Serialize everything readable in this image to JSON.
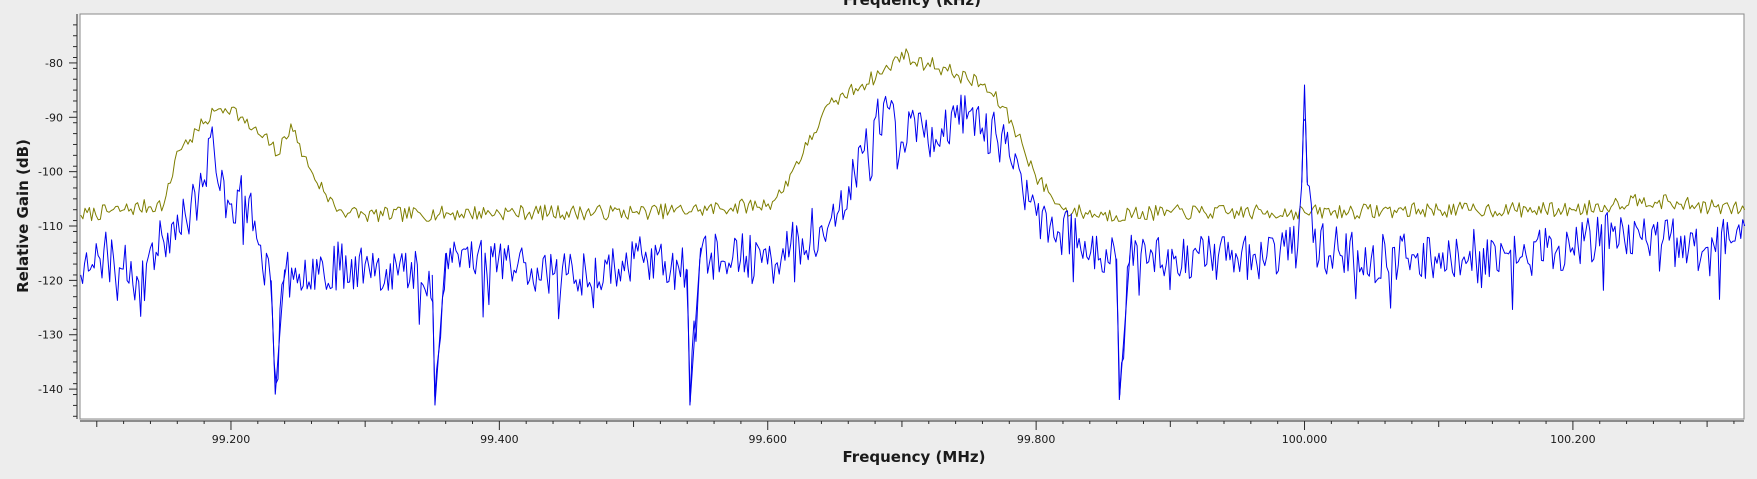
{
  "plot": {
    "top_title_partial": "Frequency (kHz)",
    "xlabel": "Frequency (MHz)",
    "ylabel": "Relative Gain (dB)"
  },
  "colors": {
    "background": "#ededed",
    "canvas": "#ffffff",
    "max_hold_trace": "#7e7e00",
    "live_trace": "#0000ee",
    "axis": "#2a2a2a"
  },
  "chart_data": {
    "type": "line",
    "title": "",
    "xlabel": "Frequency (MHz)",
    "ylabel": "Relative Gain (dB)",
    "xlim": [
      99.0875,
      100.3275
    ],
    "ylim": [
      -145.5,
      -71
    ],
    "grid": false,
    "legend": "none",
    "x_ticks": [
      99.2,
      99.4,
      99.6,
      99.8,
      100.0,
      100.2
    ],
    "x_tick_labels": [
      "99.200",
      "99.400",
      "99.600",
      "99.800",
      "100.000",
      "100.200"
    ],
    "y_ticks": [
      -80,
      -90,
      -100,
      -110,
      -120,
      -130,
      -140
    ],
    "y_tick_labels": [
      "-80",
      "-90",
      "-100",
      "-110",
      "-120",
      "-130",
      "-140"
    ],
    "series": [
      {
        "color": "#7e7e00",
        "points": [
          [
            99.088,
            -108
          ],
          [
            99.12,
            -107
          ],
          [
            99.15,
            -106
          ],
          [
            99.155,
            -102
          ],
          [
            99.16,
            -96
          ],
          [
            99.17,
            -94
          ],
          [
            99.18,
            -91
          ],
          [
            99.19,
            -88.5
          ],
          [
            99.2,
            -88
          ],
          [
            99.21,
            -91
          ],
          [
            99.22,
            -93
          ],
          [
            99.23,
            -95
          ],
          [
            99.235,
            -97
          ],
          [
            99.245,
            -91
          ],
          [
            99.25,
            -95
          ],
          [
            99.26,
            -100
          ],
          [
            99.27,
            -104
          ],
          [
            99.28,
            -107
          ],
          [
            99.3,
            -108
          ],
          [
            99.4,
            -107.5
          ],
          [
            99.5,
            -107.5
          ],
          [
            99.55,
            -107
          ],
          [
            99.6,
            -106
          ],
          [
            99.61,
            -104
          ],
          [
            99.62,
            -99
          ],
          [
            99.63,
            -95
          ],
          [
            99.64,
            -90
          ],
          [
            99.65,
            -87
          ],
          [
            99.67,
            -84
          ],
          [
            99.69,
            -81
          ],
          [
            99.7,
            -78
          ],
          [
            99.71,
            -80
          ],
          [
            99.72,
            -80
          ],
          [
            99.74,
            -82
          ],
          [
            99.76,
            -84
          ],
          [
            99.775,
            -88
          ],
          [
            99.79,
            -95
          ],
          [
            99.8,
            -101
          ],
          [
            99.81,
            -104
          ],
          [
            99.82,
            -107
          ],
          [
            99.85,
            -108
          ],
          [
            99.9,
            -107.5
          ],
          [
            100.0,
            -107.5
          ],
          [
            100.1,
            -107
          ],
          [
            100.2,
            -107
          ],
          [
            100.23,
            -106
          ],
          [
            100.25,
            -105
          ],
          [
            100.28,
            -106
          ],
          [
            100.328,
            -107
          ]
        ]
      },
      {
        "color": "#0000ee",
        "points": [
          [
            99.088,
            -119
          ],
          [
            99.1,
            -113
          ],
          [
            99.12,
            -118
          ],
          [
            99.15,
            -113
          ],
          [
            99.16,
            -108
          ],
          [
            99.17,
            -106
          ],
          [
            99.18,
            -102
          ],
          [
            99.185,
            -93
          ],
          [
            99.19,
            -102
          ],
          [
            99.2,
            -106
          ],
          [
            99.21,
            -104
          ],
          [
            99.22,
            -113
          ],
          [
            99.23,
            -120
          ],
          [
            99.233,
            -141
          ],
          [
            99.24,
            -118
          ],
          [
            99.3,
            -117
          ],
          [
            99.35,
            -119
          ],
          [
            99.352,
            -143
          ],
          [
            99.36,
            -115
          ],
          [
            99.4,
            -116
          ],
          [
            99.45,
            -119
          ],
          [
            99.5,
            -116
          ],
          [
            99.54,
            -118
          ],
          [
            99.542,
            -143
          ],
          [
            99.55,
            -114
          ],
          [
            99.6,
            -117
          ],
          [
            99.64,
            -110
          ],
          [
            99.66,
            -103
          ],
          [
            99.67,
            -97
          ],
          [
            99.68,
            -90
          ],
          [
            99.69,
            -88
          ],
          [
            99.7,
            -95
          ],
          [
            99.71,
            -90
          ],
          [
            99.72,
            -95
          ],
          [
            99.73,
            -92
          ],
          [
            99.74,
            -90
          ],
          [
            99.75,
            -89
          ],
          [
            99.76,
            -92
          ],
          [
            99.77,
            -93
          ],
          [
            99.78,
            -97
          ],
          [
            99.79,
            -104
          ],
          [
            99.8,
            -108
          ],
          [
            99.81,
            -110
          ],
          [
            99.86,
            -116
          ],
          [
            99.862,
            -142
          ],
          [
            99.87,
            -115
          ],
          [
            99.95,
            -116
          ],
          [
            99.995,
            -114
          ],
          [
            99.998,
            -102
          ],
          [
            100.0,
            -84
          ],
          [
            100.002,
            -102
          ],
          [
            100.006,
            -113
          ],
          [
            100.05,
            -116
          ],
          [
            100.1,
            -115
          ],
          [
            100.15,
            -115
          ],
          [
            100.2,
            -114
          ],
          [
            100.23,
            -111
          ],
          [
            100.25,
            -112
          ],
          [
            100.3,
            -114
          ],
          [
            100.328,
            -110
          ]
        ]
      }
    ]
  }
}
